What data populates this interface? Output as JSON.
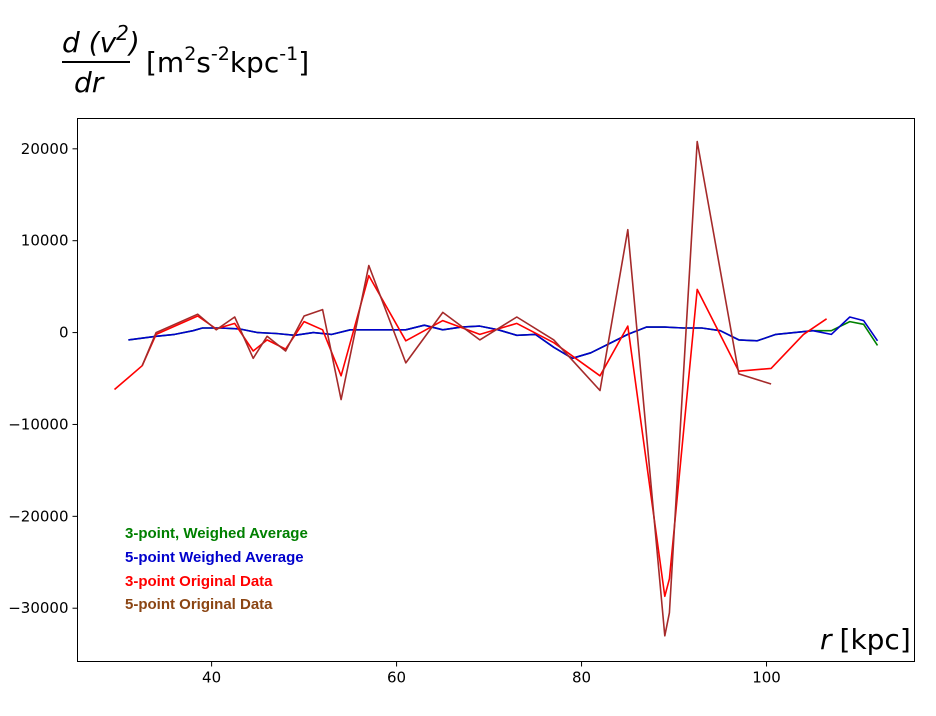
{
  "chart_data": {
    "type": "line",
    "ylabel": {
      "numerator_prefix": "d (v",
      "numerator_sup": "2",
      "numerator_suffix": ")",
      "denominator": "dr",
      "unit_open": "[m",
      "unit_m_sup": "2",
      "unit_s": "s",
      "unit_s_sup": "-2",
      "unit_kpc": "kpc",
      "unit_kpc_sup": "-1",
      "unit_close": "]"
    },
    "xlabel": {
      "var": "r",
      "unit": "[kpc]"
    },
    "xlim": [
      25.5,
      116
    ],
    "ylim": [
      -35800,
      23300
    ],
    "xticks": [
      40,
      60,
      80,
      100
    ],
    "yticks": [
      20000,
      10000,
      0,
      -10000,
      -20000,
      -30000
    ],
    "grid": false,
    "legend_position": "lower-left",
    "series": [
      {
        "name": "3-point, Weighed Average",
        "color": "#008000",
        "x": [
          31,
          34,
          36,
          38,
          39,
          41,
          43,
          45,
          47,
          49,
          51,
          53,
          55,
          57,
          59,
          61,
          63,
          65,
          67,
          69,
          71,
          73,
          75,
          77,
          79,
          81,
          83,
          85,
          87,
          89,
          91,
          93,
          95,
          97,
          99,
          101,
          103,
          105,
          107,
          109,
          110.5,
          112
        ],
        "y": [
          -800,
          -400,
          -200,
          200,
          500,
          500,
          400,
          0,
          -100,
          -300,
          0,
          -200,
          300,
          300,
          300,
          300,
          800,
          300,
          600,
          700,
          300,
          -300,
          -200,
          -1600,
          -2800,
          -2200,
          -1200,
          -200,
          600,
          600,
          500,
          500,
          200,
          -800,
          -900,
          -200,
          0,
          200,
          200,
          1200,
          900,
          -1400
        ]
      },
      {
        "name": "5-point Weighed Average",
        "color": "#0000cc",
        "x": [
          31,
          34,
          36,
          38,
          39,
          41,
          43,
          45,
          47,
          49,
          51,
          53,
          55,
          57,
          59,
          61,
          63,
          65,
          67,
          69,
          71,
          73,
          75,
          77,
          79,
          81,
          83,
          85,
          87,
          89,
          91,
          93,
          95,
          97,
          99,
          101,
          103,
          105,
          107,
          109,
          110.5,
          112
        ],
        "y": [
          -800,
          -400,
          -200,
          200,
          500,
          500,
          400,
          0,
          -100,
          -300,
          0,
          -200,
          300,
          300,
          300,
          300,
          800,
          300,
          600,
          700,
          300,
          -300,
          -200,
          -1600,
          -2800,
          -2200,
          -1200,
          -200,
          600,
          600,
          500,
          500,
          200,
          -800,
          -900,
          -200,
          0,
          200,
          -200,
          1700,
          1300,
          -900
        ]
      },
      {
        "name": "3-point Original Data",
        "color": "#ff0000",
        "x": [
          29.5,
          32.5,
          34,
          38.5,
          40.5,
          42.5,
          44.5,
          46,
          48,
          50,
          52,
          54,
          57,
          61,
          65,
          69,
          73,
          77,
          82,
          85,
          89,
          89.5,
          92.5,
          97,
          100.5,
          104,
          106.5
        ],
        "y": [
          -6200,
          -3600,
          -200,
          1800,
          400,
          1000,
          -2000,
          -800,
          -1800,
          1200,
          300,
          -4700,
          6200,
          -900,
          1300,
          -200,
          1000,
          -1100,
          -4700,
          700,
          -28700,
          -26800,
          4700,
          -4200,
          -3900,
          -200,
          1500
        ]
      },
      {
        "name": "5-point Original Data",
        "color": "#a52a2a",
        "x": [
          32.5,
          34,
          38.5,
          40.5,
          42.5,
          44.5,
          46,
          48,
          50,
          52,
          54,
          57,
          61,
          65,
          69,
          73,
          77,
          82,
          85,
          89,
          89.5,
          92.5,
          97,
          100.5
        ],
        "y": [
          -3600,
          0,
          2000,
          300,
          1700,
          -2800,
          -400,
          -2000,
          1800,
          2500,
          -7300,
          7300,
          -3300,
          2200,
          -800,
          1700,
          -800,
          -6300,
          11200,
          -33000,
          -30500,
          20800,
          -4500,
          -5600
        ]
      }
    ]
  },
  "legend": {
    "items": [
      {
        "label": "3-point, Weighed Average",
        "color": "#008000"
      },
      {
        "label": "5-point Weighed Average",
        "color": "#0000cc"
      },
      {
        "label": "3-point Original Data",
        "color": "#ff0000"
      },
      {
        "label": "5-point Original Data",
        "color": "#8b4513"
      }
    ]
  }
}
